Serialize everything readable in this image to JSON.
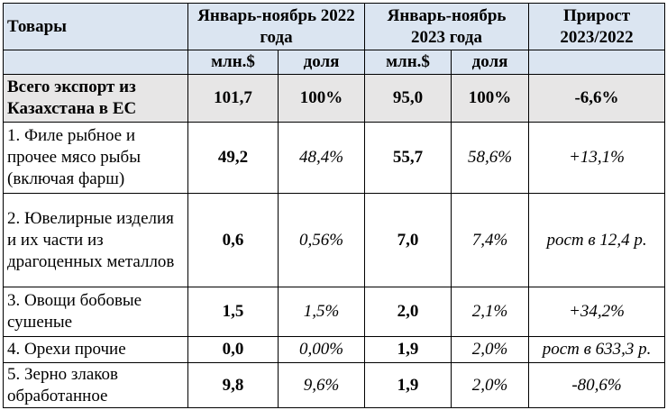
{
  "header": {
    "goods": "Товары",
    "period_2022": "Январь-ноябрь 2022 года",
    "period_2023": "Январь-ноябрь 2023 года",
    "growth": "Прирост 2023/2022",
    "unit_mln": "млн.$",
    "unit_share": "доля"
  },
  "total": {
    "name": "Всего экспорт из Казахстана в ЕС",
    "v2022": "101,7",
    "s2022": "100%",
    "v2023": "95,0",
    "s2023": "100%",
    "growth": "-6,6%"
  },
  "rows": [
    {
      "name": "1. Филе рыбное и прочее мясо рыбы (включая фарш)",
      "v2022": "49,2",
      "s2022": "48,4%",
      "v2023": "55,7",
      "s2023": "58,6%",
      "growth": "+13,1%"
    },
    {
      "name": "2. Ювелирные изделия и их части из драгоценных металлов",
      "v2022": "0,6",
      "s2022": "0,56%",
      "v2023": "7,0",
      "s2023": "7,4%",
      "growth": "рост в 12,4 р."
    },
    {
      "name": "3. Овощи бобовые сушеные",
      "v2022": "1,5",
      "s2022": "1,5%",
      "v2023": "2,0",
      "s2023": "2,1%",
      "growth": "+34,2%"
    },
    {
      "name": "4. Орехи прочие",
      "v2022": "0,0",
      "s2022": "0,00%",
      "v2023": "1,9",
      "s2023": "2,0%",
      "growth": "рост в 633,3 р."
    },
    {
      "name": "5. Зерно злаков обработанное",
      "v2022": "9,8",
      "s2022": "9,6%",
      "v2023": "1,9",
      "s2023": "2,0%",
      "growth": "-80,6%"
    }
  ]
}
